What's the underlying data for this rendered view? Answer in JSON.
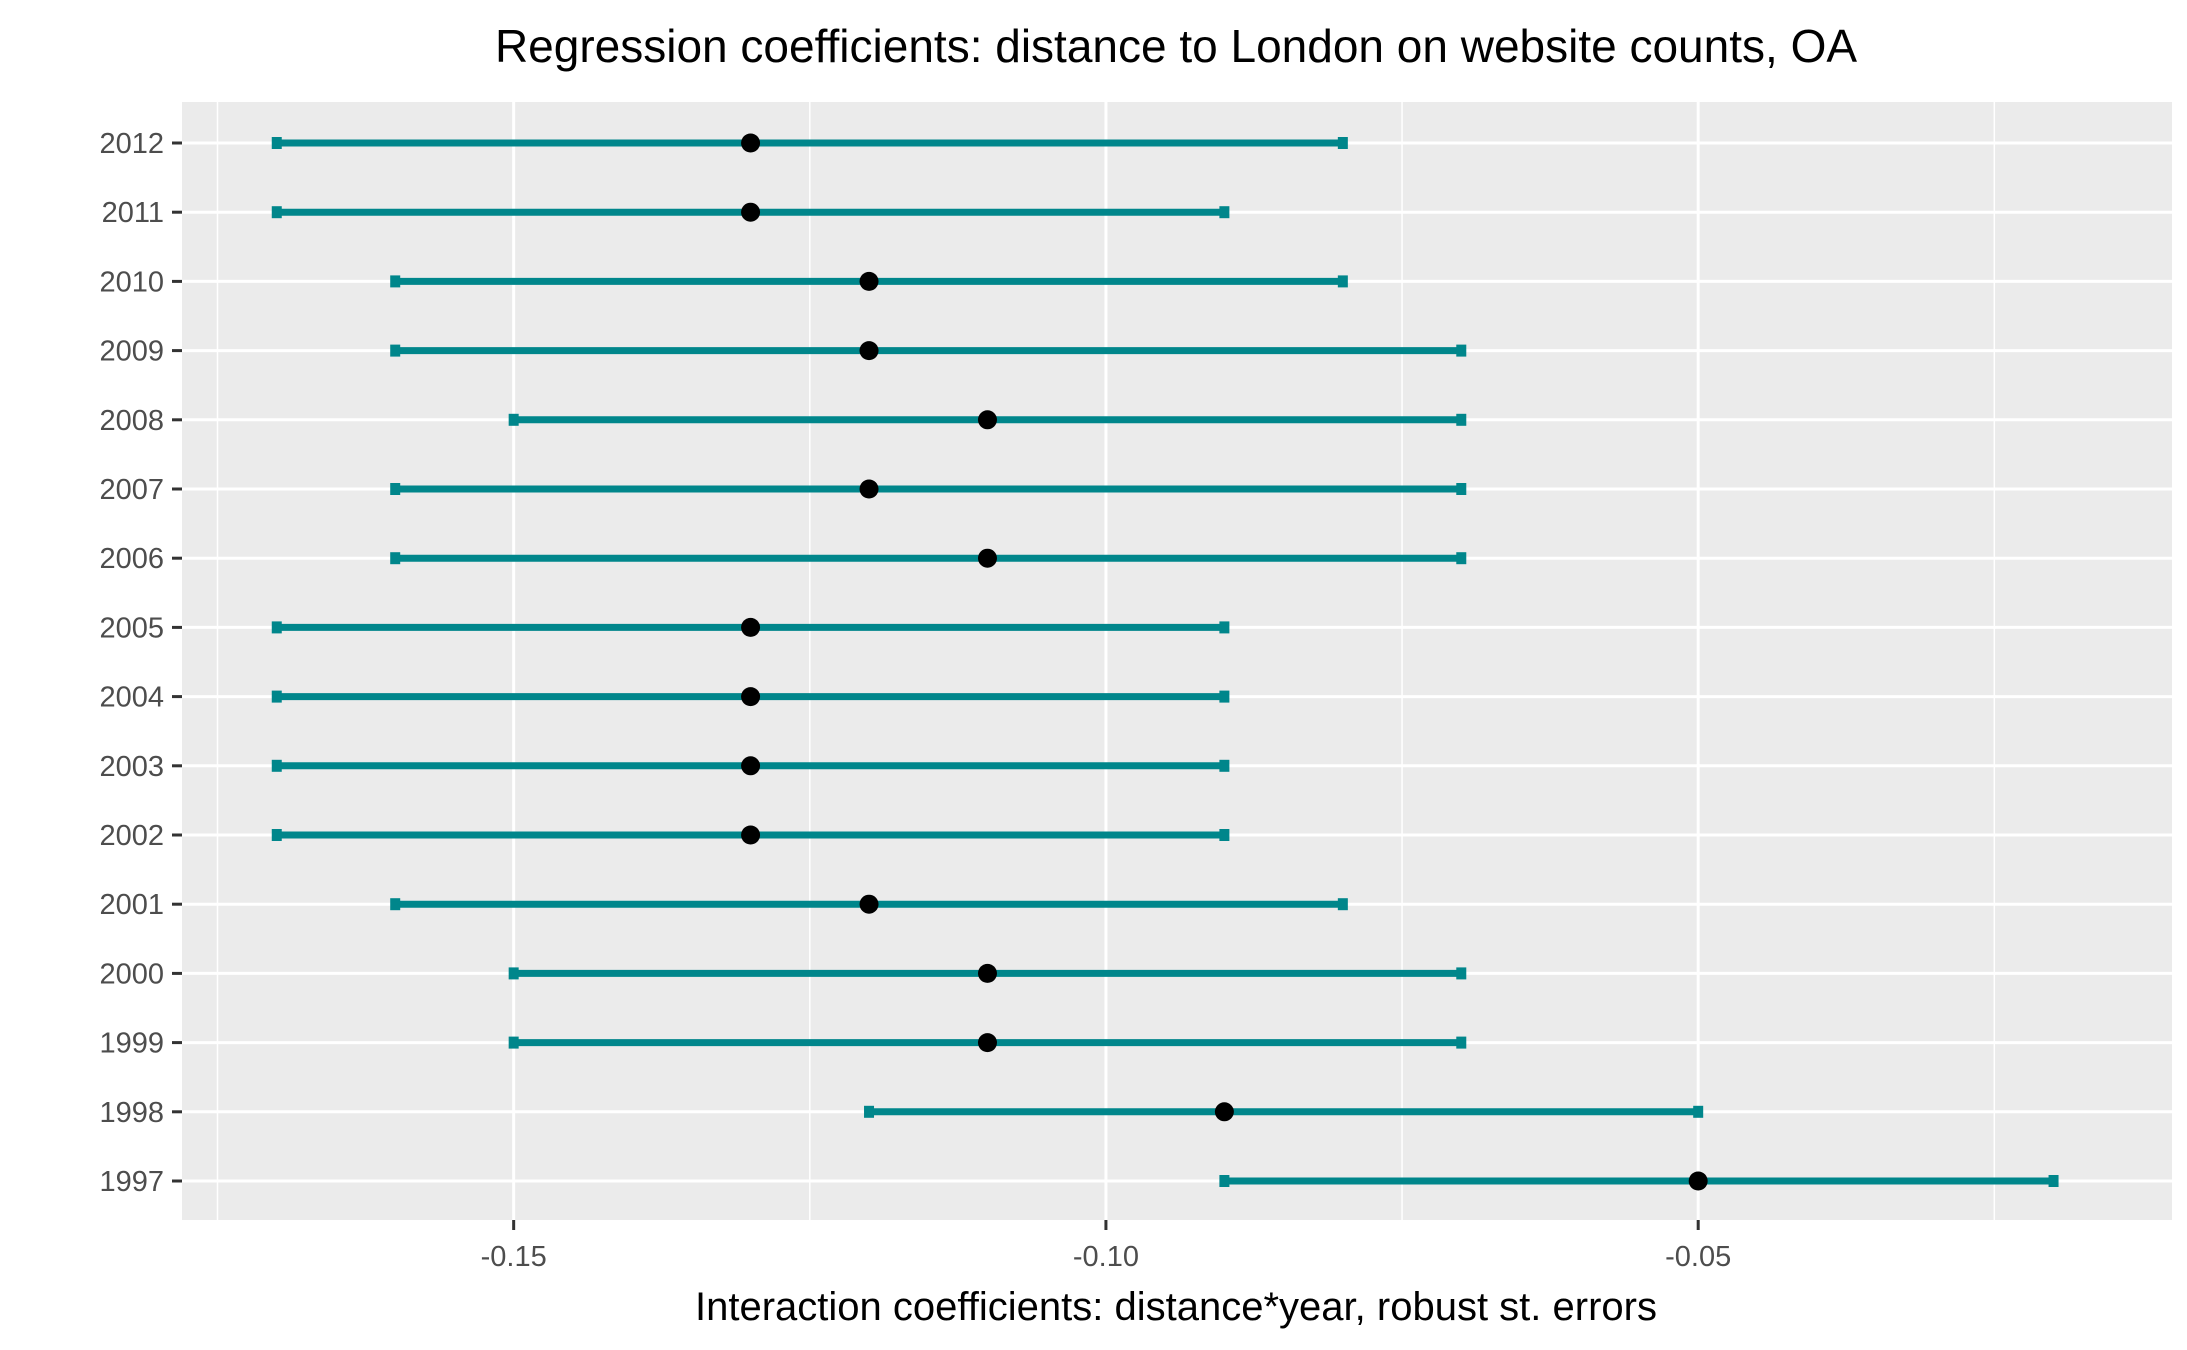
{
  "chart_data": {
    "type": "errorbar",
    "title": "Regression coefficients: distance to London on website counts, OA",
    "xlabel": "Interaction coefficients: distance*year, robust st. errors",
    "ylabel": "",
    "xlim": [
      -0.178,
      -0.01
    ],
    "xticks": [
      -0.15,
      -0.1,
      -0.05
    ],
    "xtick_labels": [
      "-0.15",
      "-0.10",
      "-0.05"
    ],
    "grid": true,
    "colors": {
      "bar": "#00868B",
      "point": "#000000",
      "panel": "#EBEBEB",
      "grid": "#FFFFFF"
    },
    "categories": [
      "2012",
      "2011",
      "2010",
      "2009",
      "2008",
      "2007",
      "2006",
      "2005",
      "2004",
      "2003",
      "2002",
      "2001",
      "2000",
      "1999",
      "1998",
      "1997"
    ],
    "estimates": [
      -0.13,
      -0.13,
      -0.12,
      -0.12,
      -0.11,
      -0.12,
      -0.11,
      -0.13,
      -0.13,
      -0.13,
      -0.13,
      -0.12,
      -0.11,
      -0.11,
      -0.09,
      -0.05
    ],
    "lower": [
      -0.17,
      -0.17,
      -0.16,
      -0.16,
      -0.15,
      -0.16,
      -0.16,
      -0.17,
      -0.17,
      -0.17,
      -0.17,
      -0.16,
      -0.15,
      -0.15,
      -0.12,
      -0.09
    ],
    "upper": [
      -0.08,
      -0.09,
      -0.08,
      -0.07,
      -0.07,
      -0.07,
      -0.07,
      -0.09,
      -0.09,
      -0.09,
      -0.09,
      -0.08,
      -0.07,
      -0.07,
      -0.05,
      -0.02
    ]
  }
}
